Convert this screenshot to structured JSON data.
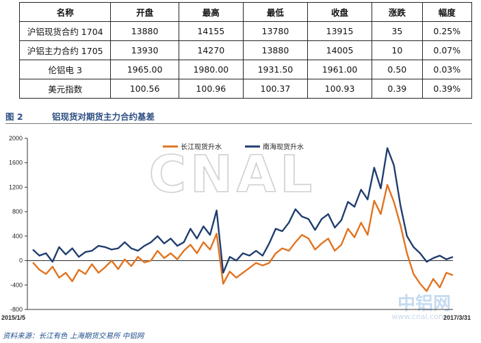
{
  "table": {
    "headers": [
      "名称",
      "开盘",
      "最高",
      "最低",
      "收盘",
      "涨跌",
      "幅度"
    ],
    "rows": [
      [
        "沪铝现货合约 1704",
        "13880",
        "14155",
        "13780",
        "13915",
        "35",
        "0.25%"
      ],
      [
        "沪铝主力合约 1705",
        "13930",
        "14270",
        "13880",
        "14005",
        "10",
        "0.07%"
      ],
      [
        "伦铝电 3",
        "1965.00",
        "1980.00",
        "1931.50",
        "1961.00",
        "0.50",
        "0.03%"
      ],
      [
        "美元指数",
        "100.56",
        "100.96",
        "100.37",
        "100.93",
        "0.39",
        "0.39%"
      ]
    ]
  },
  "figure": {
    "number": "图 2",
    "title": "铝现货对期货主力合约基差"
  },
  "watermark": {
    "text": "CNAL",
    "logo": "中铝网",
    "url": "www.cnal.com"
  },
  "source": "资料来源：长江有色  上海期货交易所  中铝网",
  "colors": {
    "orange": "#e2721d",
    "navy": "#1f3d6e"
  },
  "chart_data": {
    "type": "line",
    "title": "",
    "xlabel": "",
    "ylabel": "",
    "ylim": [
      -800,
      2000
    ],
    "yticks": [
      -800,
      -400,
      0,
      400,
      800,
      1200,
      1600,
      2000
    ],
    "x_start_label": "2015/1/5",
    "x_end_label": "2017/3/31",
    "legend_position": "top-right",
    "grid": false,
    "series": [
      {
        "name": "长江现货升水",
        "color": "#e2721d",
        "values": [
          -30,
          -150,
          -220,
          -100,
          -280,
          -200,
          -340,
          -150,
          -220,
          -60,
          -200,
          -110,
          0,
          -140,
          20,
          -90,
          60,
          -30,
          0,
          160,
          40,
          120,
          20,
          160,
          260,
          120,
          300,
          180,
          440,
          -380,
          -180,
          -280,
          -200,
          -120,
          -40,
          -80,
          -40,
          120,
          200,
          160,
          300,
          420,
          360,
          180,
          280,
          360,
          160,
          260,
          520,
          380,
          620,
          420,
          980,
          760,
          1240,
          960,
          580,
          120,
          -220,
          -380,
          -500,
          -300,
          -440,
          -200,
          -240
        ]
      },
      {
        "name": "南海现货升水",
        "color": "#1f3d6e",
        "values": [
          180,
          80,
          120,
          -20,
          220,
          100,
          200,
          60,
          140,
          160,
          240,
          220,
          180,
          200,
          300,
          200,
          160,
          240,
          300,
          400,
          280,
          360,
          240,
          300,
          520,
          360,
          560,
          420,
          820,
          -200,
          60,
          0,
          120,
          80,
          160,
          80,
          280,
          520,
          480,
          620,
          840,
          720,
          680,
          500,
          680,
          760,
          540,
          660,
          960,
          880,
          1160,
          1000,
          1520,
          1180,
          1840,
          1560,
          900,
          400,
          220,
          120,
          -20,
          40,
          80,
          20,
          60
        ]
      }
    ]
  }
}
